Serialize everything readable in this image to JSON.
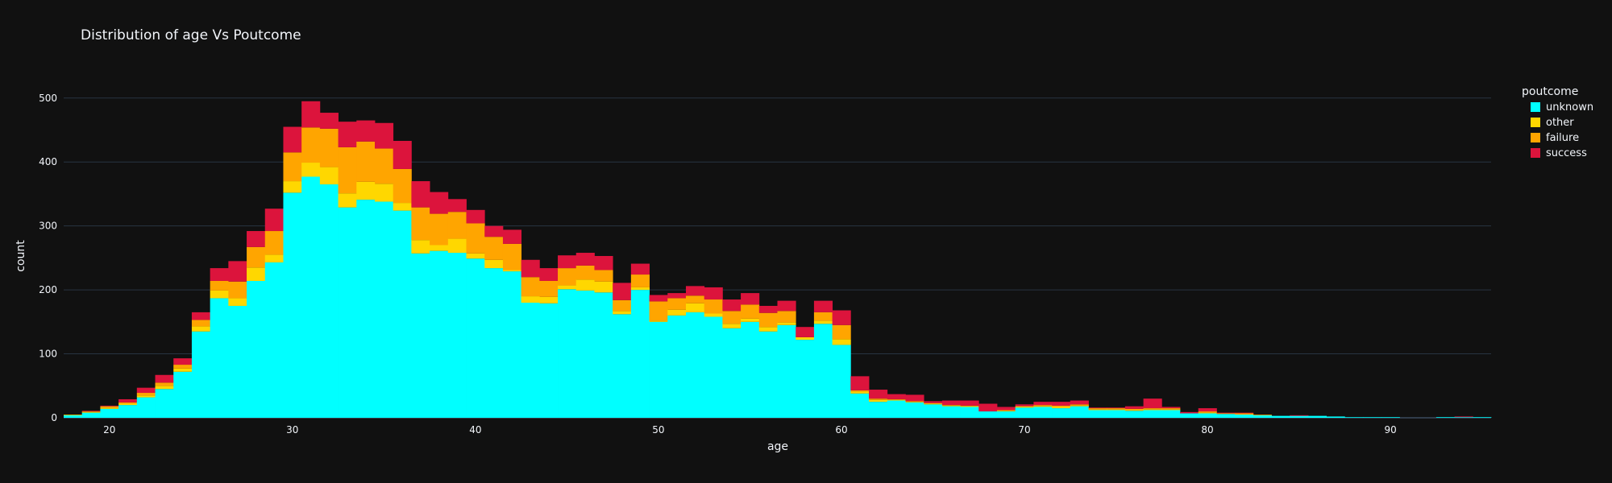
{
  "chart_data": {
    "type": "bar",
    "barmode": "stack",
    "title": "Distribution of age Vs Poutcome",
    "xlabel": "age",
    "ylabel": "count",
    "xlim": [
      17.5,
      95.5
    ],
    "ylim": [
      0,
      540
    ],
    "xticks": [
      20,
      30,
      40,
      50,
      60,
      70,
      80,
      90
    ],
    "yticks": [
      0,
      100,
      200,
      300,
      400,
      500
    ],
    "legend_title": "poutcome",
    "legend_position": "top-right",
    "grid": true,
    "x": [
      18,
      19,
      20,
      21,
      22,
      23,
      24,
      25,
      26,
      27,
      28,
      29,
      30,
      31,
      32,
      33,
      34,
      35,
      36,
      37,
      38,
      39,
      40,
      41,
      42,
      43,
      44,
      45,
      46,
      47,
      48,
      49,
      50,
      51,
      52,
      53,
      54,
      55,
      56,
      57,
      58,
      59,
      60,
      61,
      62,
      63,
      64,
      65,
      66,
      67,
      68,
      69,
      70,
      71,
      72,
      73,
      74,
      75,
      76,
      77,
      78,
      79,
      80,
      81,
      82,
      83,
      84,
      85,
      86,
      87,
      88,
      89,
      90,
      91,
      92,
      93,
      94,
      95
    ],
    "series": [
      {
        "name": "unknown",
        "color": "#00ffff",
        "values": [
          4,
          8,
          14,
          20,
          32,
          45,
          72,
          135,
          187,
          175,
          214,
          243,
          352,
          377,
          365,
          329,
          341,
          338,
          324,
          257,
          261,
          258,
          249,
          234,
          229,
          180,
          179,
          201,
          199,
          196,
          162,
          200,
          150,
          160,
          165,
          158,
          140,
          150,
          135,
          145,
          122,
          147,
          114,
          38,
          25,
          27,
          24,
          21,
          18,
          17,
          10,
          10,
          16,
          17,
          15,
          18,
          12,
          12,
          11,
          12,
          12,
          7,
          7,
          6,
          5,
          4,
          3,
          3,
          3,
          2,
          1,
          1,
          1,
          0,
          0,
          1,
          1,
          1
        ]
      },
      {
        "name": "other",
        "color": "#ffd700",
        "values": [
          1,
          1,
          2,
          2,
          3,
          5,
          5,
          8,
          12,
          12,
          21,
          12,
          18,
          22,
          27,
          22,
          28,
          28,
          12,
          21,
          9,
          22,
          8,
          13,
          2,
          10,
          10,
          6,
          17,
          17,
          5,
          4,
          2,
          9,
          14,
          5,
          7,
          5,
          7,
          4,
          4,
          5,
          9,
          3,
          3,
          1,
          1,
          1,
          1,
          1,
          0,
          1,
          2,
          1,
          2,
          1,
          1,
          1,
          1,
          1,
          1,
          0,
          1,
          0,
          0,
          0,
          0,
          0,
          0,
          0,
          0,
          0,
          0,
          0,
          0,
          0,
          0,
          0
        ]
      },
      {
        "name": "failure",
        "color": "#ffa500",
        "values": [
          0,
          1,
          2,
          2,
          4,
          5,
          6,
          10,
          15,
          26,
          32,
          37,
          45,
          55,
          60,
          72,
          63,
          55,
          53,
          51,
          49,
          42,
          47,
          36,
          41,
          30,
          25,
          27,
          22,
          18,
          17,
          20,
          30,
          18,
          12,
          22,
          20,
          22,
          22,
          18,
          0,
          13,
          22,
          2,
          2,
          1,
          1,
          1,
          1,
          1,
          0,
          1,
          0,
          2,
          2,
          2,
          2,
          2,
          2,
          2,
          2,
          0,
          2,
          1,
          2,
          1,
          0,
          0,
          0,
          0,
          0,
          0,
          0,
          0,
          0,
          0,
          0,
          0
        ]
      },
      {
        "name": "success",
        "color": "#dc143c",
        "values": [
          0,
          1,
          1,
          5,
          8,
          12,
          10,
          12,
          20,
          32,
          25,
          35,
          40,
          41,
          25,
          40,
          33,
          40,
          44,
          41,
          34,
          20,
          21,
          17,
          22,
          27,
          20,
          20,
          20,
          22,
          27,
          17,
          10,
          8,
          15,
          19,
          18,
          18,
          11,
          16,
          16,
          18,
          23,
          22,
          14,
          8,
          10,
          3,
          7,
          8,
          12,
          5,
          3,
          5,
          6,
          6,
          1,
          1,
          4,
          15,
          2,
          2,
          5,
          1,
          1,
          0,
          0,
          1,
          0,
          0,
          0,
          0,
          0,
          0,
          0,
          0,
          1,
          0
        ]
      }
    ]
  }
}
